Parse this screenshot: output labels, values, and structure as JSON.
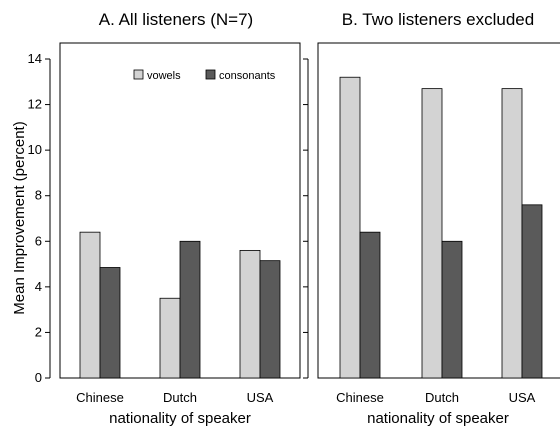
{
  "chart_data": {
    "type": "bar",
    "ylabel": "Mean Improvement (percent)",
    "ylim": [
      0,
      14
    ],
    "yticks": [
      "0",
      "2",
      "4",
      "6",
      "8",
      "10",
      "12",
      "14"
    ],
    "colors": {
      "vowels": "#d3d3d3",
      "consonants": "#5a5a5a"
    },
    "panels": [
      {
        "title": "A. All listeners (N=7)",
        "xlabel": "nationality of speaker",
        "categories": [
          "Chinese",
          "Dutch",
          "USA"
        ],
        "legend_position": "top-right",
        "series": [
          {
            "name": "vowels",
            "values": [
              6.4,
              3.5,
              5.6
            ]
          },
          {
            "name": "consonants",
            "values": [
              4.85,
              6.0,
              5.15
            ]
          }
        ]
      },
      {
        "title": "B. Two listeners excluded",
        "xlabel": "nationality of speaker",
        "categories": [
          "Chinese",
          "Dutch",
          "USA"
        ],
        "series": [
          {
            "name": "vowels",
            "values": [
              13.2,
              12.7,
              12.7
            ]
          },
          {
            "name": "consonants",
            "values": [
              6.4,
              6.0,
              7.6
            ]
          }
        ]
      }
    ]
  }
}
